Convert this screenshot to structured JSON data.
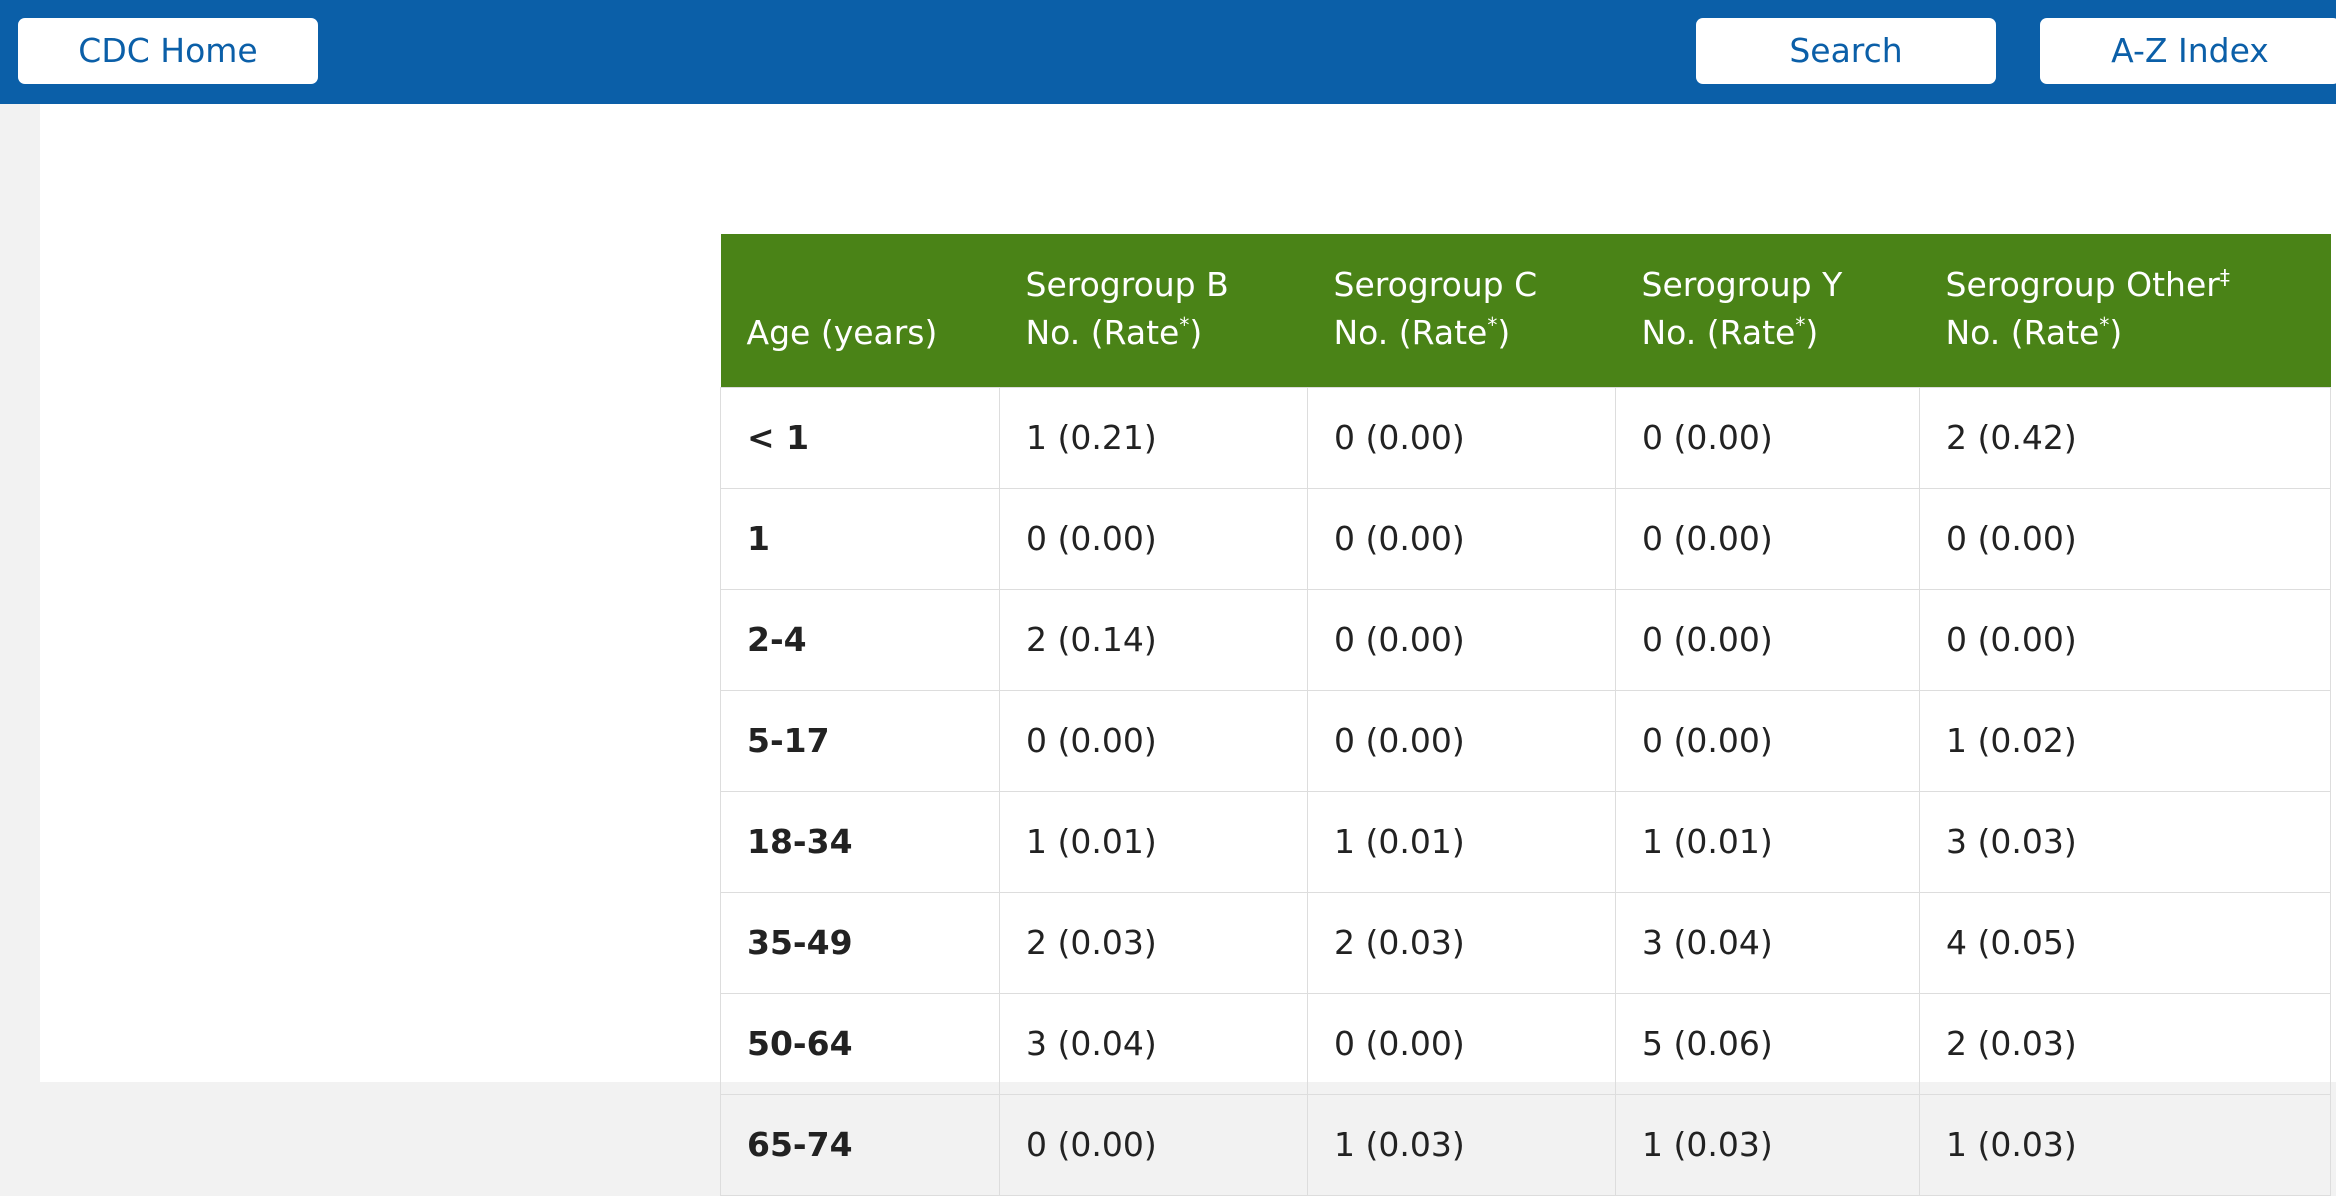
{
  "header": {
    "home_label": "CDC Home",
    "search_label": "Search",
    "az_label": "A-Z Index"
  },
  "colors": {
    "topbar": "#0b5fa8",
    "table_header": "#4a8317"
  },
  "table": {
    "headers": [
      {
        "line1": "",
        "line2": "Age (years)",
        "sup": ""
      },
      {
        "line1": "Serogroup B",
        "line2": "No. (Rate",
        "sup": "*",
        "tail": ")"
      },
      {
        "line1": "Serogroup C",
        "line2": "No. (Rate",
        "sup": "*",
        "tail": ")"
      },
      {
        "line1": "Serogroup Y",
        "line2": "No. (Rate",
        "sup": "*",
        "tail": ")"
      },
      {
        "line1": "Serogroup Other",
        "line1_sup": "‡",
        "line2": "No. (Rate",
        "sup": "*",
        "tail": ")"
      }
    ],
    "rows": [
      {
        "age": "< 1",
        "b": "1 (0.21)",
        "c": "0 (0.00)",
        "y": "0 (0.00)",
        "other": "2 (0.42)"
      },
      {
        "age": "1",
        "b": "0 (0.00)",
        "c": "0 (0.00)",
        "y": "0 (0.00)",
        "other": "0 (0.00)"
      },
      {
        "age": "2-4",
        "b": "2 (0.14)",
        "c": "0 (0.00)",
        "y": "0 (0.00)",
        "other": "0 (0.00)"
      },
      {
        "age": "5-17",
        "b": "0 (0.00)",
        "c": "0 (0.00)",
        "y": "0 (0.00)",
        "other": "1 (0.02)"
      },
      {
        "age": "18-34",
        "b": "1 (0.01)",
        "c": "1 (0.01)",
        "y": "1 (0.01)",
        "other": "3 (0.03)"
      },
      {
        "age": "35-49",
        "b": "2 (0.03)",
        "c": "2 (0.03)",
        "y": "3 (0.04)",
        "other": "4 (0.05)"
      },
      {
        "age": "50-64",
        "b": "3 (0.04)",
        "c": "0 (0.00)",
        "y": "5 (0.06)",
        "other": "2 (0.03)"
      },
      {
        "age": "65-74",
        "b": "0 (0.00)",
        "c": "1 (0.03)",
        "y": "1 (0.03)",
        "other": "1 (0.03)"
      }
    ]
  }
}
